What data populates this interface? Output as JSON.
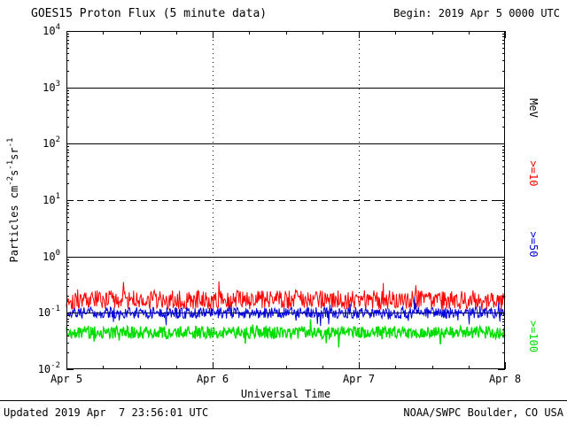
{
  "header": {
    "title": "GOES15 Proton Flux (5 minute data)",
    "begin_label": "Begin: 2019 Apr 5 0000 UTC"
  },
  "footer": {
    "updated": "Updated 2019 Apr  7 23:56:01 UTC",
    "source": "NOAA/SWPC Boulder, CO USA"
  },
  "axes": {
    "x_label": "Universal Time",
    "y_label_parts": [
      "Particles cm",
      "-2",
      "s",
      "-1",
      "sr",
      "-1"
    ]
  },
  "chart_data": {
    "type": "line",
    "title": "GOES15 Proton Flux (5 minute data)",
    "x_start": "2019 Apr 5 0000 UTC",
    "x_end": "2019 Apr 8 0000 UTC",
    "x_tick_labels": [
      "Apr 5",
      "Apr 6",
      "Apr 7",
      "Apr 8"
    ],
    "xlabel": "Universal Time",
    "ylabel": "Particles cm-2 s-1 sr-1",
    "y_scale": "log10",
    "ylim_log10": [
      -2,
      4
    ],
    "y_ticks": [
      {
        "mantissa": "10",
        "exponent": "4"
      },
      {
        "mantissa": "10",
        "exponent": "3"
      },
      {
        "mantissa": "10",
        "exponent": "2"
      },
      {
        "mantissa": "10",
        "exponent": "1"
      },
      {
        "mantissa": "10",
        "exponent": "0"
      },
      {
        "mantissa": "10",
        "exponent": "-1"
      },
      {
        "mantissa": "10",
        "exponent": "-2"
      }
    ],
    "gridlines_h": [
      {
        "log10": 3,
        "style": "solid"
      },
      {
        "log10": 2,
        "style": "solid"
      },
      {
        "log10": 1,
        "style": "dashed"
      },
      {
        "log10": 0,
        "style": "solid"
      },
      {
        "log10": -1,
        "style": "solid"
      }
    ],
    "gridlines_v_days": [
      1,
      2
    ],
    "days_span": 3,
    "units_label": "MeV",
    "legend_position": "right",
    "points_per_series": 700,
    "series": [
      {
        "name": ">=10 MeV",
        "label": ">=10",
        "color": "#ff0000",
        "approx_mean_flux": 0.17,
        "approx_range": [
          0.09,
          0.45
        ],
        "seed": 101,
        "log_amplitude": 0.17,
        "spike_prob": 0.02,
        "spike_up": 0.28,
        "spike_down": 0.1,
        "stroke_width": 1
      },
      {
        "name": ">=50 MeV",
        "label": ">=50",
        "color": "#0000dd",
        "approx_mean_flux": 0.1,
        "approx_range": [
          0.055,
          0.2
        ],
        "seed": 202,
        "log_amplitude": 0.1,
        "spike_prob": 0.02,
        "spike_up": 0.22,
        "spike_down": 0.25,
        "stroke_width": 1
      },
      {
        "name": ">=100 MeV",
        "label": ">=100",
        "color": "#00dd00",
        "approx_mean_flux": 0.045,
        "approx_range": [
          0.028,
          0.08
        ],
        "seed": 303,
        "log_amplitude": 0.11,
        "spike_prob": 0.02,
        "spike_up": 0.15,
        "spike_down": 0.2,
        "stroke_width": 1.4
      }
    ]
  }
}
